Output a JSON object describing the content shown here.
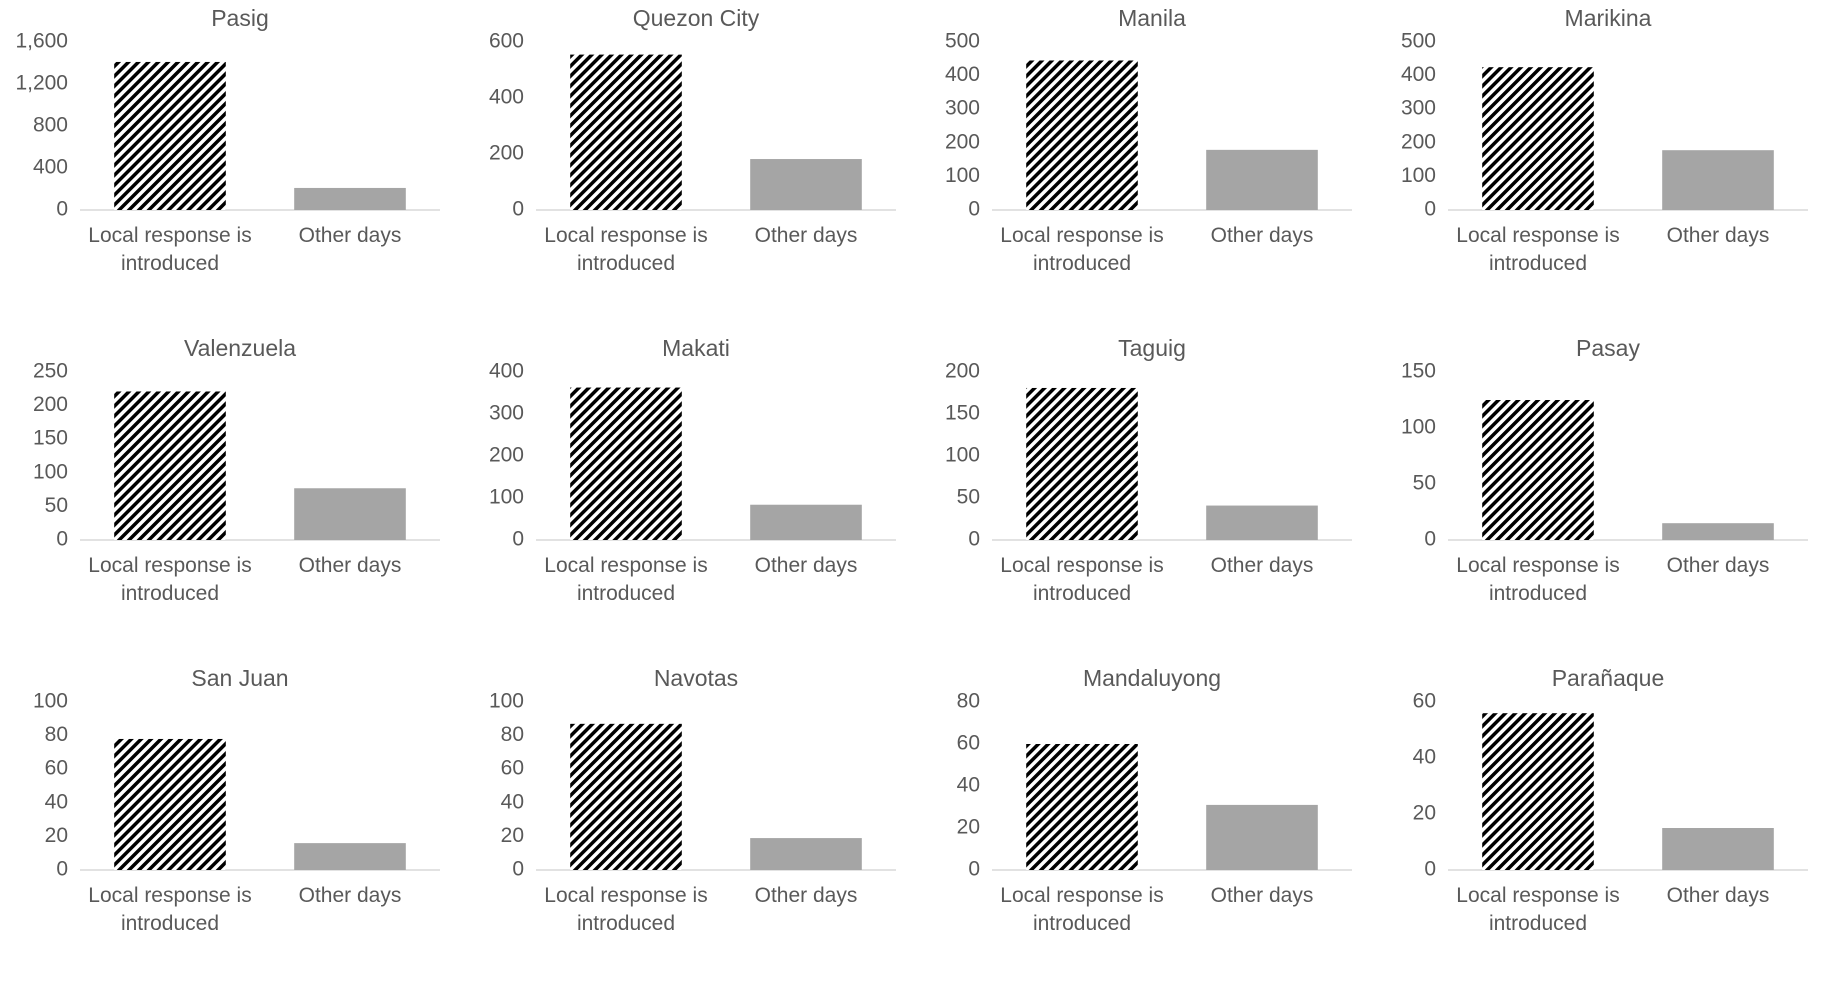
{
  "chart_data": [
    {
      "type": "bar",
      "title": "Pasig",
      "categories": [
        "Local response is introduced",
        "Other days"
      ],
      "values": [
        1410,
        210
      ],
      "colors": [
        "#000000",
        "#a5a5a5"
      ],
      "hatch": [
        true,
        false
      ],
      "ylim": [
        0,
        1600
      ],
      "yticks": [
        0,
        400,
        800,
        {
          "value": 1200,
          "label": "1,200"
        },
        {
          "value": 1600,
          "label": "1,600"
        }
      ]
    },
    {
      "type": "bar",
      "title": "Quezon City",
      "categories": [
        "Local response is introduced",
        "Other days"
      ],
      "values": [
        555,
        182
      ],
      "colors": [
        "#000000",
        "#a5a5a5"
      ],
      "hatch": [
        true,
        false
      ],
      "ylim": [
        0,
        600
      ],
      "yticks": [
        0,
        200,
        400,
        600
      ]
    },
    {
      "type": "bar",
      "title": "Manila",
      "categories": [
        "Local response is introduced",
        "Other days"
      ],
      "values": [
        445,
        179
      ],
      "colors": [
        "#000000",
        "#a5a5a5"
      ],
      "hatch": [
        true,
        false
      ],
      "ylim": [
        0,
        500
      ],
      "yticks": [
        0,
        100,
        200,
        300,
        400,
        500
      ]
    },
    {
      "type": "bar",
      "title": "Marikina",
      "categories": [
        "Local response is introduced",
        "Other days"
      ],
      "values": [
        425,
        178
      ],
      "colors": [
        "#000000",
        "#a5a5a5"
      ],
      "hatch": [
        true,
        false
      ],
      "ylim": [
        0,
        500
      ],
      "yticks": [
        0,
        100,
        200,
        300,
        400,
        500
      ]
    },
    {
      "type": "bar",
      "title": "Valenzuela",
      "categories": [
        "Local response is introduced",
        "Other days"
      ],
      "values": [
        221,
        77
      ],
      "colors": [
        "#000000",
        "#a5a5a5"
      ],
      "hatch": [
        true,
        false
      ],
      "ylim": [
        0,
        250
      ],
      "yticks": [
        0,
        50,
        100,
        150,
        200,
        250
      ]
    },
    {
      "type": "bar",
      "title": "Makati",
      "categories": [
        "Local response is introduced",
        "Other days"
      ],
      "values": [
        363,
        84
      ],
      "colors": [
        "#000000",
        "#a5a5a5"
      ],
      "hatch": [
        true,
        false
      ],
      "ylim": [
        0,
        400
      ],
      "yticks": [
        0,
        100,
        200,
        300,
        400
      ]
    },
    {
      "type": "bar",
      "title": "Taguig",
      "categories": [
        "Local response is introduced",
        "Other days"
      ],
      "values": [
        181,
        41
      ],
      "colors": [
        "#000000",
        "#a5a5a5"
      ],
      "hatch": [
        true,
        false
      ],
      "ylim": [
        0,
        200
      ],
      "yticks": [
        0,
        50,
        100,
        150,
        200
      ]
    },
    {
      "type": "bar",
      "title": "Pasay",
      "categories": [
        "Local response is introduced",
        "Other days"
      ],
      "values": [
        125,
        15
      ],
      "colors": [
        "#000000",
        "#a5a5a5"
      ],
      "hatch": [
        true,
        false
      ],
      "ylim": [
        0,
        150
      ],
      "yticks": [
        0,
        50,
        100,
        150
      ]
    },
    {
      "type": "bar",
      "title": "San Juan",
      "categories": [
        "Local response is introduced",
        "Other days"
      ],
      "values": [
        78,
        16
      ],
      "colors": [
        "#000000",
        "#a5a5a5"
      ],
      "hatch": [
        true,
        false
      ],
      "ylim": [
        0,
        100
      ],
      "yticks": [
        0,
        20,
        40,
        60,
        80,
        100
      ]
    },
    {
      "type": "bar",
      "title": "Navotas",
      "categories": [
        "Local response is introduced",
        "Other days"
      ],
      "values": [
        87,
        19
      ],
      "colors": [
        "#000000",
        "#a5a5a5"
      ],
      "hatch": [
        true,
        false
      ],
      "ylim": [
        0,
        100
      ],
      "yticks": [
        0,
        20,
        40,
        60,
        80,
        100
      ]
    },
    {
      "type": "bar",
      "title": "Mandaluyong",
      "categories": [
        "Local response is introduced",
        "Other days"
      ],
      "values": [
        60,
        31
      ],
      "colors": [
        "#000000",
        "#a5a5a5"
      ],
      "hatch": [
        true,
        false
      ],
      "ylim": [
        0,
        80
      ],
      "yticks": [
        0,
        20,
        40,
        60,
        80
      ]
    },
    {
      "type": "bar",
      "title": "Parañaque",
      "categories": [
        "Local response is introduced",
        "Other days"
      ],
      "values": [
        56,
        15
      ],
      "colors": [
        "#000000",
        "#a5a5a5"
      ],
      "hatch": [
        true,
        false
      ],
      "ylim": [
        0,
        60
      ],
      "yticks": [
        0,
        20,
        40,
        60
      ]
    }
  ]
}
